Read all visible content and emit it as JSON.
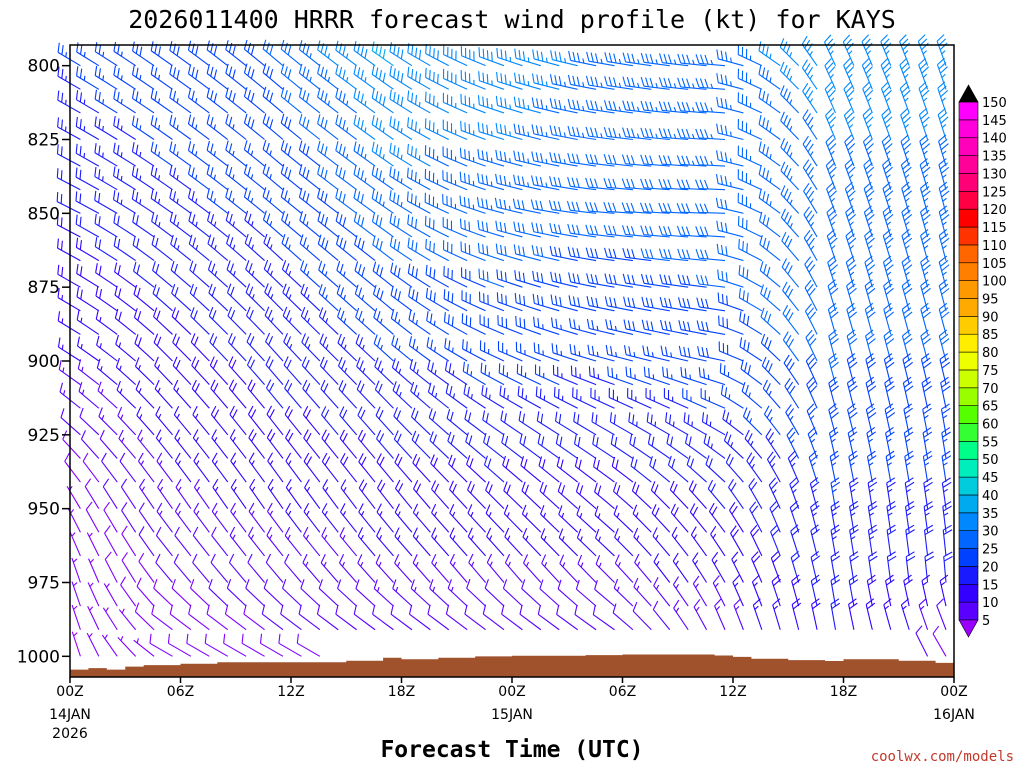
{
  "chart_data": {
    "type": "wind_barb_time_height",
    "title": "2026011400 HRRR forecast wind profile (kt) for KAYS",
    "xlabel": "Forecast Time (UTC)",
    "credit": "coolwx.com/models",
    "y_axis": {
      "units": "hPa",
      "range": [
        1007,
        793
      ],
      "ticks": [
        800,
        825,
        850,
        875,
        900,
        925,
        950,
        975,
        1000
      ]
    },
    "x_axis": {
      "units": "forecast hour",
      "range": [
        0,
        48
      ],
      "ticks": [
        {
          "hour": 0,
          "label": "00Z",
          "date": "14JAN",
          "year": "2026"
        },
        {
          "hour": 6,
          "label": "06Z"
        },
        {
          "hour": 12,
          "label": "12Z"
        },
        {
          "hour": 18,
          "label": "18Z"
        },
        {
          "hour": 24,
          "label": "00Z",
          "date": "15JAN"
        },
        {
          "hour": 30,
          "label": "06Z"
        },
        {
          "hour": 36,
          "label": "12Z"
        },
        {
          "hour": 42,
          "label": "18Z"
        },
        {
          "hour": 48,
          "label": "00Z",
          "date": "16JAN"
        }
      ]
    },
    "colorbar": {
      "levels": [
        5,
        10,
        15,
        20,
        25,
        30,
        35,
        40,
        45,
        50,
        55,
        60,
        65,
        70,
        75,
        80,
        85,
        90,
        95,
        100,
        105,
        110,
        115,
        120,
        125,
        130,
        135,
        140,
        145,
        150
      ],
      "colors": [
        "#7f00ff",
        "#5a00ff",
        "#3300ff",
        "#1a1aff",
        "#0040ff",
        "#0066ff",
        "#0088ff",
        "#00aaee",
        "#00ccdd",
        "#00eebb",
        "#00ff88",
        "#33ff33",
        "#55ff00",
        "#99ff00",
        "#ccff00",
        "#eeff00",
        "#ffee00",
        "#ffcc00",
        "#ffaa00",
        "#ff9900",
        "#ff8000",
        "#ff6600",
        "#ff3300",
        "#ff0000",
        "#ff0044",
        "#ff0077",
        "#ff0099",
        "#ff00bb",
        "#ff00dd",
        "#ff00ff"
      ],
      "below_color": "#9900ff",
      "above_color": "#000000"
    },
    "levels_hpa": [
      800,
      808,
      816,
      825,
      834,
      842,
      850,
      858,
      866,
      875,
      883,
      891,
      900,
      908,
      916,
      925,
      933,
      941,
      950,
      958,
      966,
      975,
      983,
      991,
      1000
    ],
    "surface_pressure_hpa": [
      {
        "hour": 0,
        "p": 1004.5
      },
      {
        "hour": 1,
        "p": 1004.0
      },
      {
        "hour": 2,
        "p": 1004.5
      },
      {
        "hour": 3,
        "p": 1003.5
      },
      {
        "hour": 4,
        "p": 1003.0
      },
      {
        "hour": 6,
        "p": 1002.5
      },
      {
        "hour": 8,
        "p": 1002.0
      },
      {
        "hour": 10,
        "p": 1002.0
      },
      {
        "hour": 12,
        "p": 1002.0
      },
      {
        "hour": 14,
        "p": 1002.0
      },
      {
        "hour": 15,
        "p": 1001.5
      },
      {
        "hour": 16,
        "p": 1001.5
      },
      {
        "hour": 17,
        "p": 1000.5
      },
      {
        "hour": 18,
        "p": 1001.0
      },
      {
        "hour": 20,
        "p": 1000.5
      },
      {
        "hour": 22,
        "p": 1000.0
      },
      {
        "hour": 24,
        "p": 999.8
      },
      {
        "hour": 28,
        "p": 999.6
      },
      {
        "hour": 30,
        "p": 999.4
      },
      {
        "hour": 34,
        "p": 999.4
      },
      {
        "hour": 35,
        "p": 999.7
      },
      {
        "hour": 36,
        "p": 1000.2
      },
      {
        "hour": 37,
        "p": 1000.8
      },
      {
        "hour": 39,
        "p": 1001.3
      },
      {
        "hour": 41,
        "p": 1001.6
      },
      {
        "hour": 42,
        "p": 1001.0
      },
      {
        "hour": 45,
        "p": 1001.5
      },
      {
        "hour": 47,
        "p": 1002.2
      },
      {
        "hour": 48,
        "p": 1002.8
      }
    ],
    "wind_keyframes": [
      {
        "hour": 0,
        "levels": [
          {
            "p": 800,
            "dir": 300,
            "spd": 25
          },
          {
            "p": 850,
            "dir": 295,
            "spd": 20
          },
          {
            "p": 900,
            "dir": 300,
            "spd": 15
          },
          {
            "p": 925,
            "dir": 310,
            "spd": 10
          },
          {
            "p": 950,
            "dir": 330,
            "spd": 6
          },
          {
            "p": 975,
            "dir": 345,
            "spd": 5
          },
          {
            "p": 1000,
            "dir": 350,
            "spd": 4
          }
        ]
      },
      {
        "hour": 6,
        "levels": [
          {
            "p": 800,
            "dir": 305,
            "spd": 28
          },
          {
            "p": 850,
            "dir": 305,
            "spd": 24
          },
          {
            "p": 900,
            "dir": 315,
            "spd": 18
          },
          {
            "p": 925,
            "dir": 320,
            "spd": 16
          },
          {
            "p": 950,
            "dir": 325,
            "spd": 14
          },
          {
            "p": 975,
            "dir": 320,
            "spd": 10
          },
          {
            "p": 1000,
            "dir": 300,
            "spd": 8
          }
        ]
      },
      {
        "hour": 12,
        "levels": [
          {
            "p": 800,
            "dir": 310,
            "spd": 30
          },
          {
            "p": 850,
            "dir": 310,
            "spd": 26
          },
          {
            "p": 900,
            "dir": 318,
            "spd": 22
          },
          {
            "p": 925,
            "dir": 322,
            "spd": 19
          },
          {
            "p": 950,
            "dir": 325,
            "spd": 16
          },
          {
            "p": 975,
            "dir": 320,
            "spd": 12
          },
          {
            "p": 1000,
            "dir": 300,
            "spd": 9
          }
        ]
      },
      {
        "hour": 18,
        "levels": [
          {
            "p": 800,
            "dir": 305,
            "spd": 40
          },
          {
            "p": 850,
            "dir": 305,
            "spd": 33
          },
          {
            "p": 900,
            "dir": 312,
            "spd": 25
          },
          {
            "p": 925,
            "dir": 318,
            "spd": 21
          },
          {
            "p": 950,
            "dir": 322,
            "spd": 18
          },
          {
            "p": 975,
            "dir": 318,
            "spd": 14
          },
          {
            "p": 1000,
            "dir": 300,
            "spd": 10
          }
        ]
      },
      {
        "hour": 24,
        "levels": [
          {
            "p": 800,
            "dir": 290,
            "spd": 38
          },
          {
            "p": 850,
            "dir": 285,
            "spd": 33
          },
          {
            "p": 900,
            "dir": 295,
            "spd": 27
          },
          {
            "p": 925,
            "dir": 305,
            "spd": 22
          },
          {
            "p": 950,
            "dir": 315,
            "spd": 19
          },
          {
            "p": 975,
            "dir": 320,
            "spd": 14
          },
          {
            "p": 1000,
            "dir": 300,
            "spd": 9
          }
        ]
      },
      {
        "hour": 30,
        "levels": [
          {
            "p": 800,
            "dir": 280,
            "spd": 34
          },
          {
            "p": 850,
            "dir": 275,
            "spd": 31
          },
          {
            "p": 900,
            "dir": 285,
            "spd": 26
          },
          {
            "p": 925,
            "dir": 300,
            "spd": 22
          },
          {
            "p": 950,
            "dir": 310,
            "spd": 18
          },
          {
            "p": 975,
            "dir": 315,
            "spd": 14
          },
          {
            "p": 1000,
            "dir": 300,
            "spd": 9
          }
        ]
      },
      {
        "hour": 36,
        "levels": [
          {
            "p": 800,
            "dir": 275,
            "spd": 34
          },
          {
            "p": 850,
            "dir": 272,
            "spd": 32
          },
          {
            "p": 900,
            "dir": 282,
            "spd": 28
          },
          {
            "p": 925,
            "dir": 300,
            "spd": 24
          },
          {
            "p": 950,
            "dir": 320,
            "spd": 20
          },
          {
            "p": 975,
            "dir": 330,
            "spd": 16
          },
          {
            "p": 1000,
            "dir": 340,
            "spd": 12
          }
        ]
      },
      {
        "hour": 42,
        "levels": [
          {
            "p": 800,
            "dir": 335,
            "spd": 36
          },
          {
            "p": 850,
            "dir": 340,
            "spd": 34
          },
          {
            "p": 900,
            "dir": 345,
            "spd": 31
          },
          {
            "p": 925,
            "dir": 345,
            "spd": 28
          },
          {
            "p": 950,
            "dir": 350,
            "spd": 25
          },
          {
            "p": 975,
            "dir": 350,
            "spd": 22
          },
          {
            "p": 1000,
            "dir": 350,
            "spd": 20
          }
        ]
      },
      {
        "hour": 48,
        "levels": [
          {
            "p": 800,
            "dir": 340,
            "spd": 36
          },
          {
            "p": 850,
            "dir": 345,
            "spd": 34
          },
          {
            "p": 900,
            "dir": 345,
            "spd": 31
          },
          {
            "p": 925,
            "dir": 350,
            "spd": 27
          },
          {
            "p": 950,
            "dir": 352,
            "spd": 24
          },
          {
            "p": 975,
            "dir": 355,
            "spd": 20
          },
          {
            "p": 1000,
            "dir": 330,
            "spd": 8
          }
        ]
      }
    ]
  }
}
